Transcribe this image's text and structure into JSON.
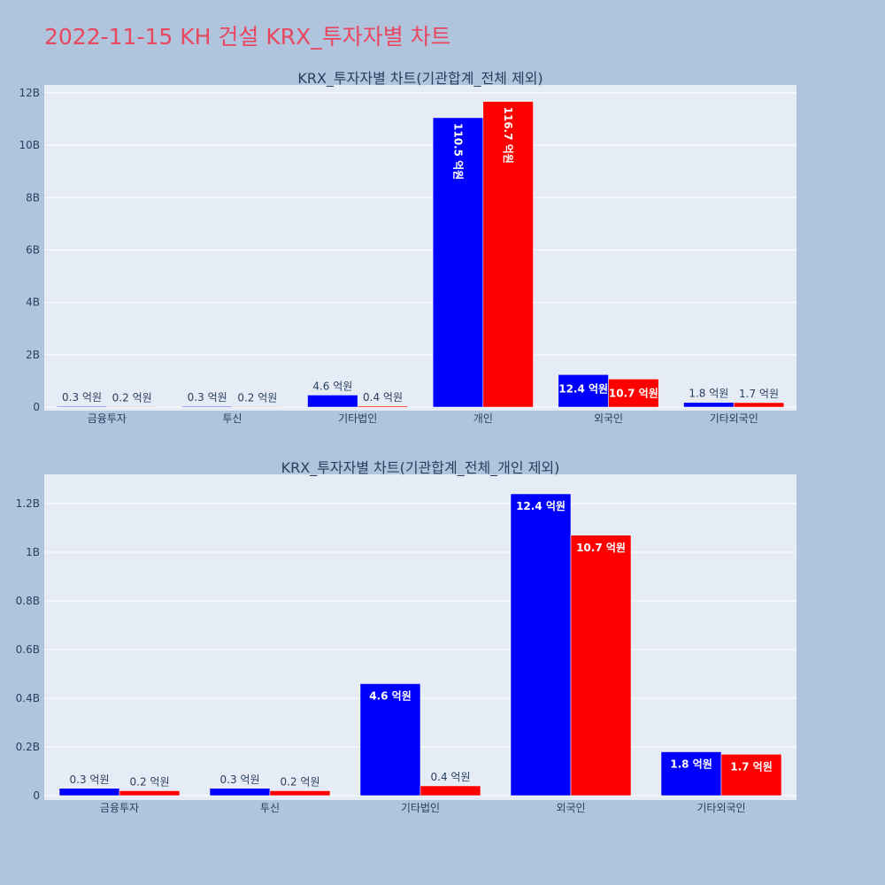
{
  "title": "2022-11-15 KH 건설 KRX_투자자별 차트",
  "colors": {
    "background": "#b0c4de",
    "plot_bg": "#e5ecf6",
    "title": "#e8475f",
    "series_a": "#0000ff",
    "series_b": "#ff0000"
  },
  "chart_data": [
    {
      "type": "bar",
      "title": "KRX_투자자별 차트(기관합계_전체 제외)",
      "categories": [
        "금융투자",
        "투신",
        "기타법인",
        "개인",
        "외국인",
        "기타외국인"
      ],
      "series": [
        {
          "color": "#0000ff",
          "values": [
            30000000,
            30000000,
            460000000,
            11050000000,
            1240000000,
            180000000
          ],
          "labels": [
            "0.3 억원",
            "0.3 억원",
            "4.6 억원",
            "110.5 억원",
            "12.4 억원",
            "1.8 억원"
          ]
        },
        {
          "color": "#ff0000",
          "values": [
            20000000,
            20000000,
            40000000,
            11670000000,
            1070000000,
            170000000
          ],
          "labels": [
            "0.2 억원",
            "0.2 억원",
            "0.4 억원",
            "116.7 억원",
            "10.7 억원",
            "1.7 억원"
          ]
        }
      ],
      "y_ticks": [
        "0",
        "2B",
        "4B",
        "6B",
        "8B",
        "10B",
        "12B"
      ],
      "y_tick_values": [
        0,
        2000000000,
        4000000000,
        6000000000,
        8000000000,
        10000000000,
        12000000000
      ],
      "ylim": [
        0,
        12300000000
      ],
      "grid": true,
      "legend": "none"
    },
    {
      "type": "bar",
      "title": "KRX_투자자별 차트(기관합계_전체_개인 제외)",
      "categories": [
        "금융투자",
        "투신",
        "기타법인",
        "외국인",
        "기타외국인"
      ],
      "series": [
        {
          "color": "#0000ff",
          "values": [
            30000000,
            30000000,
            460000000,
            1240000000,
            180000000
          ],
          "labels": [
            "0.3 억원",
            "0.3 억원",
            "4.6 억원",
            "12.4 억원",
            "1.8 억원"
          ]
        },
        {
          "color": "#ff0000",
          "values": [
            20000000,
            20000000,
            40000000,
            1070000000,
            170000000
          ],
          "labels": [
            "0.2 억원",
            "0.2 억원",
            "0.4 억원",
            "10.7 억원",
            "1.7 억원"
          ]
        }
      ],
      "y_ticks": [
        "0",
        "0.2B",
        "0.4B",
        "0.6B",
        "0.8B",
        "1B",
        "1.2B"
      ],
      "y_tick_values": [
        0,
        200000000,
        400000000,
        600000000,
        800000000,
        1000000000,
        1200000000
      ],
      "ylim": [
        0,
        1320000000
      ],
      "grid": true,
      "legend": "none"
    }
  ]
}
